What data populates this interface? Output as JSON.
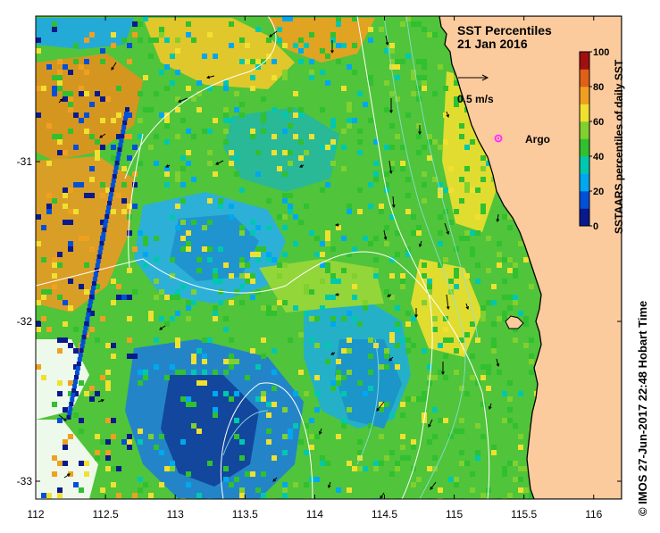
{
  "title": "SST Percentiles",
  "date": "21 Jan 2016",
  "scale_arrow_label": "0.5 m/s",
  "argo_label": "Argo",
  "colorbar": {
    "label": "SSTAARS percentiles of daily SST",
    "ticks": [
      "0",
      "20",
      "40",
      "60",
      "80",
      "100"
    ],
    "colors": [
      "#0a1a8c",
      "#0050d8",
      "#00a8f0",
      "#00c8b0",
      "#30c030",
      "#80d030",
      "#f0e030",
      "#f0a020",
      "#e06018",
      "#a01010"
    ]
  },
  "x_axis": {
    "ticks": [
      "112",
      "112.5",
      "113",
      "113.5",
      "114",
      "114.5",
      "115",
      "115.5",
      "116"
    ]
  },
  "y_axis": {
    "ticks": [
      "-31",
      "-32",
      "-33"
    ]
  },
  "credit": "© IMOS 27-Jun-2017 22:48 Hobart Time",
  "colors": {
    "land": "#fbcb9e",
    "coast": "#000000",
    "contour": "#ffffff",
    "argo": "#ff33ff"
  }
}
